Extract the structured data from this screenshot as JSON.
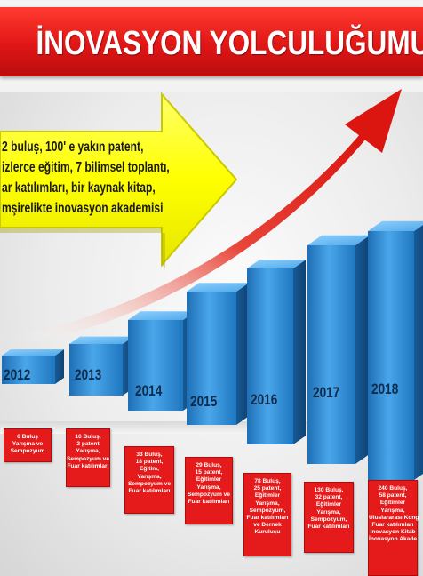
{
  "title": "İNOVASYON YOLCULUĞUMUZDA",
  "callout": {
    "lines": [
      "2 buluş, 100' e yakın patent,",
      "izlerce eğitim, 7 bilimsel toplantı,",
      "ar katılımları, bir kaynak kitap,",
      "mşirelikte inovasyon akademisi"
    ]
  },
  "milestones": [
    {
      "year": "2012",
      "lines": [
        "6 Buluş",
        "Yarışma ve",
        "Sempozyum"
      ]
    },
    {
      "year": "2013",
      "lines": [
        "16 Buluş,",
        "2 patent",
        "Yarışma,",
        "Sempozyum ve",
        "Fuar katılımları"
      ]
    },
    {
      "year": "2014",
      "lines": [
        "33 Buluş,",
        "18 patent,",
        "Eğitim,",
        "Yarışma,",
        "Sempozyum ve",
        "Fuar katılımları"
      ]
    },
    {
      "year": "2015",
      "lines": [
        "29 Buluş,",
        "15 patent,",
        "Eğitimler",
        "Yarışma,",
        "Sempozyum ve",
        "Fuar katılımları"
      ]
    },
    {
      "year": "2016",
      "lines": [
        "78 Buluş,",
        "25 patent,",
        "Eğitimler",
        "Yarışma,",
        "Sempozyum,",
        "Fuar katılımları",
        "ve Dernek",
        "Kuruluşu"
      ]
    },
    {
      "year": "2017",
      "lines": [
        "130 Buluş,",
        "32 patent,",
        "Eğitimler",
        "Yarışma,",
        "Sempozyum,",
        "Fuar katılımları"
      ]
    },
    {
      "year": "2018",
      "lines": [
        "240 Buluş,",
        "58 patent,",
        "Eğitimler",
        "Yarışma,",
        "Uluslararası Kong",
        "Fuar katılımları",
        "İnovasyon Kitab",
        "İnovasyon Akade"
      ]
    }
  ],
  "colors": {
    "title_band": "#e01616",
    "bar_blue": "#2f8fd6",
    "arrow_yellow": "#ffff00",
    "swoosh_red": "#e8251e",
    "info_box": "#e51b1b"
  }
}
